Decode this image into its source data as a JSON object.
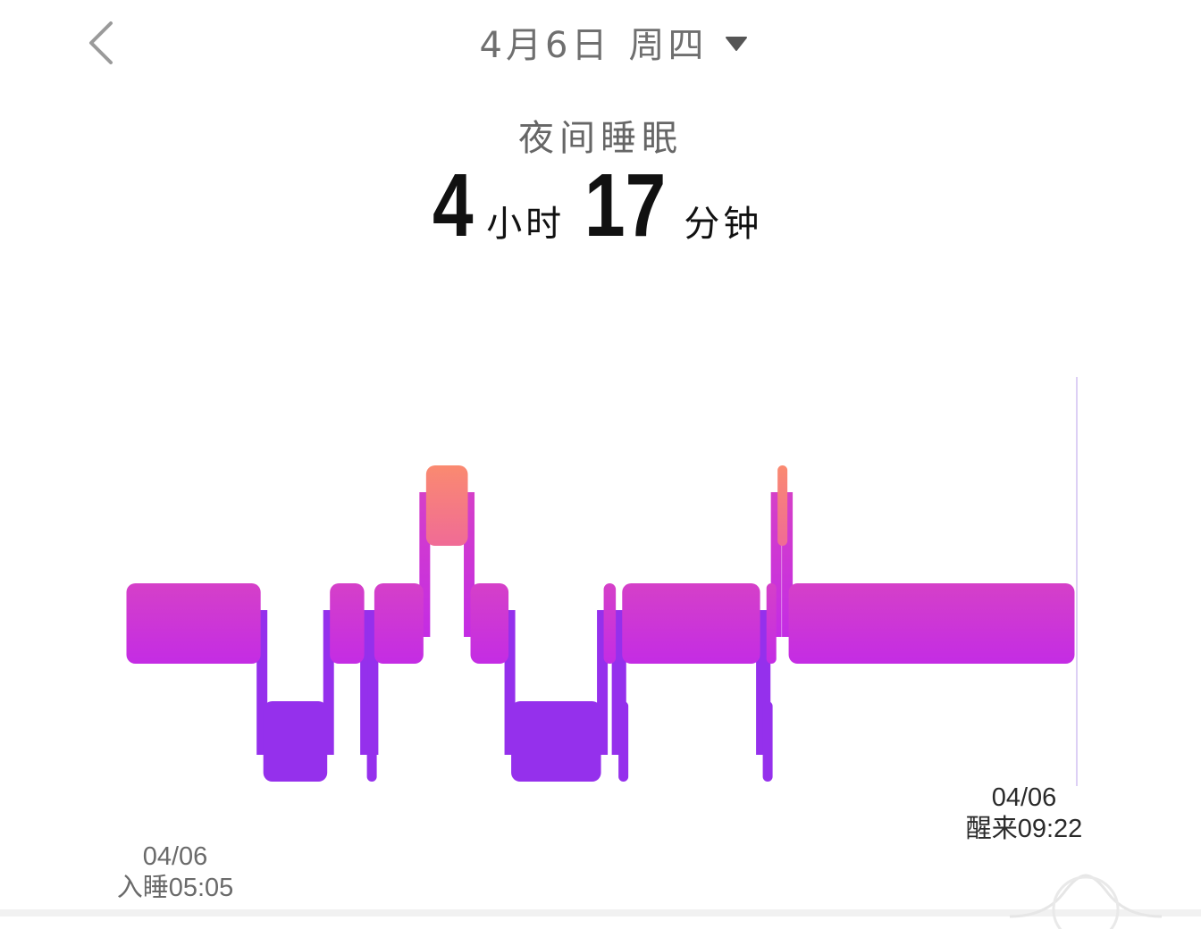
{
  "header": {
    "date": "4月6日",
    "weekday": "周四"
  },
  "summary": {
    "title": "夜间睡眠",
    "hours": "4",
    "hours_unit": "小时",
    "minutes": "17",
    "minutes_unit": "分钟"
  },
  "chart_data": {
    "type": "sleep-stage-timeline",
    "start_time": "05:05",
    "end_time": "09:22",
    "levels": [
      "deep",
      "light",
      "rem"
    ],
    "segments": [
      {
        "stage": "light",
        "start": "05:05",
        "end": "05:42"
      },
      {
        "stage": "deep",
        "start": "05:42",
        "end": "06:00"
      },
      {
        "stage": "light",
        "start": "06:00",
        "end": "06:10"
      },
      {
        "stage": "deep",
        "start": "06:10",
        "end": "06:12"
      },
      {
        "stage": "light",
        "start": "06:12",
        "end": "06:26"
      },
      {
        "stage": "rem",
        "start": "06:26",
        "end": "06:38"
      },
      {
        "stage": "light",
        "start": "06:38",
        "end": "06:49"
      },
      {
        "stage": "deep",
        "start": "06:49",
        "end": "07:14"
      },
      {
        "stage": "light",
        "start": "07:14",
        "end": "07:18"
      },
      {
        "stage": "deep",
        "start": "07:18",
        "end": "07:19"
      },
      {
        "stage": "light",
        "start": "07:19",
        "end": "07:57"
      },
      {
        "stage": "deep",
        "start": "07:57",
        "end": "07:58"
      },
      {
        "stage": "light",
        "start": "07:58",
        "end": "08:01"
      },
      {
        "stage": "rem",
        "start": "08:01",
        "end": "08:04"
      },
      {
        "stage": "light",
        "start": "08:04",
        "end": "09:22"
      }
    ],
    "colors": {
      "rem_top": "#FA8A70",
      "rem_bottom": "#F06B96",
      "light_top": "#D540C8",
      "light_bottom": "#C42CE4",
      "deep": "#9530EC"
    }
  },
  "start_label": {
    "date": "04/06",
    "text": "入睡05:05"
  },
  "end_label": {
    "date": "04/06",
    "text": "醒来09:22"
  }
}
